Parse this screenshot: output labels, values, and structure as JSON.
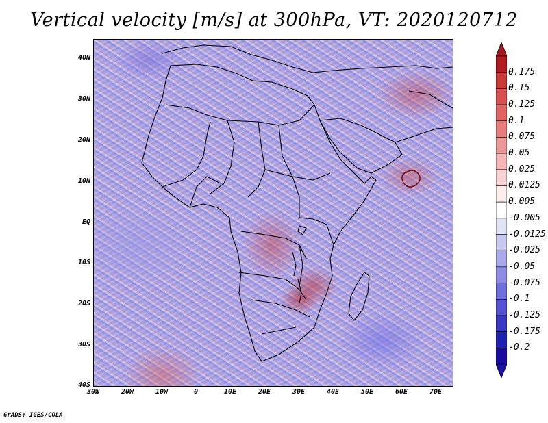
{
  "title": "Vertical velocity [m/s] at 300hPa, VT: 2020120712",
  "credit": "GrADS: IGES/COLA",
  "map": {
    "lat_labels": [
      "40N",
      "30N",
      "20N",
      "10N",
      "EQ",
      "10S",
      "20S",
      "30S",
      "40S"
    ],
    "lon_labels": [
      "30W",
      "20W",
      "10W",
      "0",
      "10E",
      "20E",
      "30E",
      "40E",
      "50E",
      "60E",
      "70E"
    ],
    "lat_range": [
      -40,
      45
    ],
    "lon_range": [
      -30,
      75
    ]
  },
  "colorbar": {
    "labels": [
      "0.175",
      "0.15",
      "0.125",
      "0.1",
      "0.075",
      "0.05",
      "0.025",
      "0.0125",
      "0.005",
      "-0.005",
      "-0.0125",
      "-0.025",
      "-0.05",
      "-0.075",
      "-0.1",
      "-0.125",
      "-0.175",
      "-0.2"
    ],
    "colors": [
      "#b01c22",
      "#c73a3a",
      "#d95050",
      "#e06464",
      "#e77d7d",
      "#ee9999",
      "#f3b5b5",
      "#f8d2d2",
      "#fdeeee",
      "#ffffff",
      "#e3e3f8",
      "#c7c7f0",
      "#aaaaea",
      "#8c8ce2",
      "#7070da",
      "#5454d0",
      "#3838c2",
      "#2020b0",
      "#1a0aa0"
    ],
    "top_cap_color": "#a81820",
    "bottom_cap_color": "#1a10a8"
  }
}
